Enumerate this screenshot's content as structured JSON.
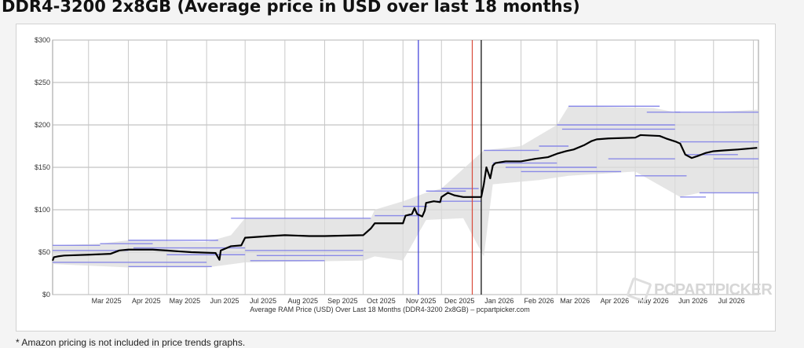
{
  "page": {
    "title": "DDR4-3200 2x8GB (Average price in USD over last 18 months)",
    "footnote": "* Amazon pricing is not included in price trends graphs.",
    "watermark": "PCPARTPICKER"
  },
  "chart_data": {
    "type": "line",
    "title": "DDR4-3200 2x8GB (Average price in USD over last 18 months)",
    "xlabel": "Average RAM Price (USD) Over Last 18 Months (DDR4-3200 2x8GB) – pcpartpicker.com",
    "ylabel": "",
    "ylim": [
      0,
      300
    ],
    "y_ticks": [
      "$0",
      "$50",
      "$100",
      "$150",
      "$200",
      "$250",
      "$300"
    ],
    "x_ticks": [
      "Mar 2025",
      "Apr 2025",
      "May 2025",
      "Jun 2025",
      "Jul 2025",
      "Aug 2025",
      "Sep 2025",
      "Oct 2025",
      "Nov 2025",
      "Dec 2025",
      "Jan 2026",
      "Feb 2026",
      "Mar 2026",
      "Apr 2026",
      "May 2026",
      "Jun 2026",
      "Jul 2026"
    ],
    "x_range": [
      "2025-02-01",
      "2026-08-05"
    ],
    "grid": true,
    "series": [
      {
        "color": "#000000",
        "points": [
          [
            "2025-02-01",
            40
          ],
          [
            "2025-02-02",
            44
          ],
          [
            "2025-02-05",
            45
          ],
          [
            "2025-02-10",
            46
          ],
          [
            "2025-03-01",
            47
          ],
          [
            "2025-03-18",
            48
          ],
          [
            "2025-03-25",
            52
          ],
          [
            "2025-04-01",
            53
          ],
          [
            "2025-04-20",
            53
          ],
          [
            "2025-05-01",
            52
          ],
          [
            "2025-05-10",
            51
          ],
          [
            "2025-05-20",
            50
          ],
          [
            "2025-06-08",
            49
          ],
          [
            "2025-06-11",
            41
          ],
          [
            "2025-06-12",
            52
          ],
          [
            "2025-06-20",
            57
          ],
          [
            "2025-06-28",
            58
          ],
          [
            "2025-07-01",
            67
          ],
          [
            "2025-07-20",
            69
          ],
          [
            "2025-08-01",
            70
          ],
          [
            "2025-08-20",
            69
          ],
          [
            "2025-09-01",
            69
          ],
          [
            "2025-10-01",
            70
          ],
          [
            "2025-10-07",
            78
          ],
          [
            "2025-10-10",
            84
          ],
          [
            "2025-11-01",
            84
          ],
          [
            "2025-11-03",
            93
          ],
          [
            "2025-11-08",
            95
          ],
          [
            "2025-11-10",
            102
          ],
          [
            "2025-11-12",
            95
          ],
          [
            "2025-11-16",
            92
          ],
          [
            "2025-11-18",
            99
          ],
          [
            "2025-11-19",
            108
          ],
          [
            "2025-11-25",
            110
          ],
          [
            "2025-11-30",
            109
          ],
          [
            "2025-12-01",
            115
          ],
          [
            "2025-12-06",
            120
          ],
          [
            "2025-12-11",
            117
          ],
          [
            "2025-12-18",
            115
          ],
          [
            "2026-01-01",
            115
          ],
          [
            "2026-01-03",
            130
          ],
          [
            "2026-01-05",
            150
          ],
          [
            "2026-01-08",
            137
          ],
          [
            "2026-01-10",
            152
          ],
          [
            "2026-01-12",
            155
          ],
          [
            "2026-01-20",
            157
          ],
          [
            "2026-02-01",
            157
          ],
          [
            "2026-02-12",
            160
          ],
          [
            "2026-02-22",
            162
          ],
          [
            "2026-03-01",
            166
          ],
          [
            "2026-03-08",
            169
          ],
          [
            "2026-03-14",
            171
          ],
          [
            "2026-03-22",
            176
          ],
          [
            "2026-03-28",
            181
          ],
          [
            "2026-04-01",
            183
          ],
          [
            "2026-04-10",
            184
          ],
          [
            "2026-05-01",
            185
          ],
          [
            "2026-05-05",
            188
          ],
          [
            "2026-05-20",
            187
          ],
          [
            "2026-05-25",
            184
          ],
          [
            "2026-06-02",
            180
          ],
          [
            "2026-06-05",
            178
          ],
          [
            "2026-06-09",
            165
          ],
          [
            "2026-06-14",
            161
          ],
          [
            "2026-06-18",
            163
          ],
          [
            "2026-06-25",
            167
          ],
          [
            "2026-07-01",
            169
          ],
          [
            "2026-07-10",
            170
          ],
          [
            "2026-07-20",
            171
          ],
          [
            "2026-08-04",
            173
          ]
        ]
      }
    ],
    "vertical_markers": [
      {
        "date": "2025-11-13",
        "color": "#3a3ad8"
      },
      {
        "date": "2025-12-25",
        "color": "#d84a3a"
      },
      {
        "date": "2026-01-01",
        "color": "#000000"
      }
    ],
    "range_band": {
      "color": "#dcdcdc",
      "upper": [
        [
          "2025-02-01",
          58
        ],
        [
          "2025-03-10",
          60
        ],
        [
          "2025-04-01",
          64
        ],
        [
          "2025-06-01",
          62
        ],
        [
          "2025-06-20",
          70
        ],
        [
          "2025-07-01",
          90
        ],
        [
          "2025-10-07",
          90
        ],
        [
          "2025-10-10",
          100
        ],
        [
          "2025-11-01",
          110
        ],
        [
          "2025-11-19",
          120
        ],
        [
          "2025-12-01",
          125
        ],
        [
          "2026-01-03",
          170
        ],
        [
          "2026-02-01",
          175
        ],
        [
          "2026-03-01",
          200
        ],
        [
          "2026-03-10",
          222
        ],
        [
          "2026-05-15",
          220
        ],
        [
          "2026-06-01",
          215
        ],
        [
          "2026-07-01",
          215
        ],
        [
          "2026-08-05",
          218
        ]
      ],
      "lower": [
        [
          "2025-02-01",
          36
        ],
        [
          "2025-04-01",
          32
        ],
        [
          "2025-06-01",
          32
        ],
        [
          "2025-07-01",
          38
        ],
        [
          "2025-10-01",
          40
        ],
        [
          "2025-10-10",
          45
        ],
        [
          "2025-11-01",
          40
        ],
        [
          "2025-11-19",
          88
        ],
        [
          "2025-12-18",
          90
        ],
        [
          "2026-01-03",
          45
        ],
        [
          "2026-01-10",
          130
        ],
        [
          "2026-02-15",
          135
        ],
        [
          "2026-03-10",
          140
        ],
        [
          "2026-05-01",
          145
        ],
        [
          "2026-06-05",
          115
        ],
        [
          "2026-06-20",
          120
        ],
        [
          "2026-08-05",
          120
        ]
      ]
    },
    "retailer_lines_color": "#7a7ae8",
    "retailer_lines": [
      [
        "2025-02-01",
        "2025-03-10",
        58
      ],
      [
        "2025-02-01",
        "2025-04-01",
        52
      ],
      [
        "2025-02-01",
        "2025-06-01",
        38
      ],
      [
        "2025-03-10",
        "2025-04-20",
        60
      ],
      [
        "2025-04-01",
        "2025-06-10",
        64
      ],
      [
        "2025-04-05",
        "2025-07-01",
        55
      ],
      [
        "2025-05-01",
        "2025-07-01",
        47
      ],
      [
        "2025-04-01",
        "2025-06-05",
        33
      ],
      [
        "2025-06-20",
        "2025-10-07",
        90
      ],
      [
        "2025-07-01",
        "2025-10-01",
        52
      ],
      [
        "2025-07-10",
        "2025-10-01",
        46
      ],
      [
        "2025-07-05",
        "2025-09-01",
        40
      ],
      [
        "2025-10-10",
        "2025-11-15",
        93
      ],
      [
        "2025-11-01",
        "2025-11-20",
        104
      ],
      [
        "2025-11-19",
        "2025-12-20",
        122
      ],
      [
        "2025-11-25",
        "2026-01-01",
        110
      ],
      [
        "2025-12-01",
        "2025-12-30",
        125
      ],
      [
        "2026-01-03",
        "2026-02-15",
        170
      ],
      [
        "2026-01-10",
        "2026-03-01",
        155
      ],
      [
        "2026-01-20",
        "2026-04-01",
        150
      ],
      [
        "2026-02-15",
        "2026-03-10",
        175
      ],
      [
        "2026-03-01",
        "2026-06-01",
        200
      ],
      [
        "2026-03-10",
        "2026-05-20",
        222
      ],
      [
        "2026-03-05",
        "2026-06-01",
        195
      ],
      [
        "2026-02-01",
        "2026-04-20",
        145
      ],
      [
        "2026-04-10",
        "2026-06-01",
        160
      ],
      [
        "2026-05-10",
        "2026-06-05",
        215
      ],
      [
        "2026-06-01",
        "2026-08-05",
        215
      ],
      [
        "2026-06-05",
        "2026-08-05",
        180
      ],
      [
        "2026-06-10",
        "2026-07-20",
        165
      ],
      [
        "2026-06-05",
        "2026-06-25",
        115
      ],
      [
        "2026-06-20",
        "2026-08-05",
        120
      ],
      [
        "2026-05-01",
        "2026-06-10",
        140
      ],
      [
        "2026-07-01",
        "2026-08-05",
        160
      ]
    ]
  }
}
